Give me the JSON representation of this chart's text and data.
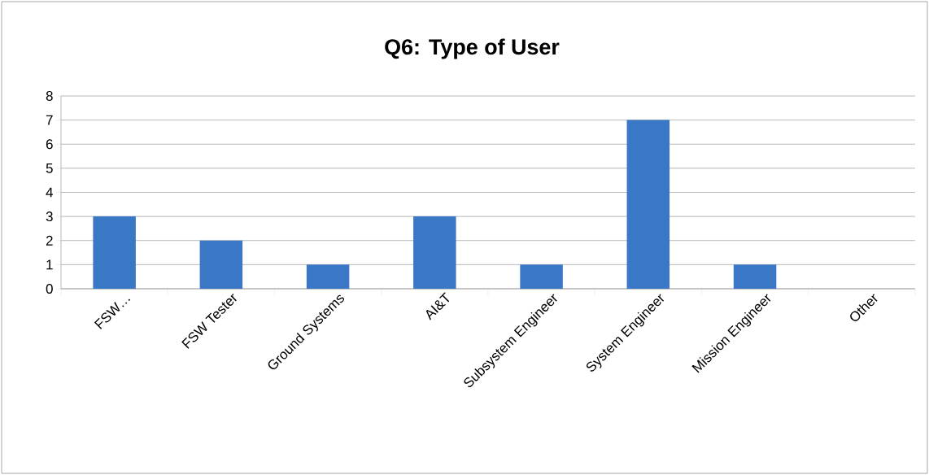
{
  "chart_data": {
    "type": "bar",
    "title": "Q6: Type of User",
    "categories": [
      "FSW…",
      "FSW Tester",
      "Ground Systems",
      "AI&T",
      "Subsystem Engineer",
      "System Engineer",
      "Mission Engineer",
      "Other"
    ],
    "values": [
      3,
      2,
      1,
      3,
      1,
      7,
      1,
      0
    ],
    "color": "#3a77c4",
    "ylim": [
      0,
      8
    ],
    "yticks": [
      0,
      1,
      2,
      3,
      4,
      5,
      6,
      7,
      8
    ],
    "grid": "y"
  }
}
